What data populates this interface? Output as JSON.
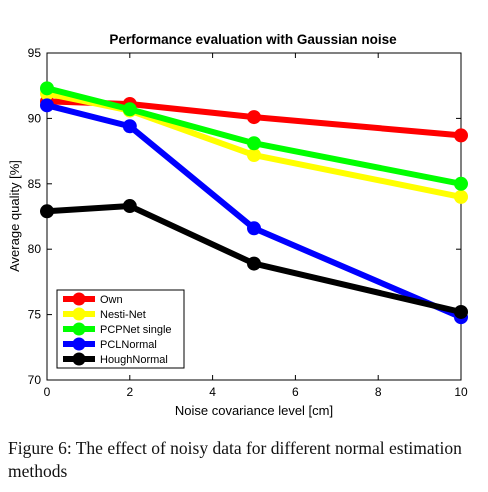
{
  "chart_data": {
    "type": "line",
    "title": "Performance evaluation with Gaussian noise",
    "xlabel": "Noise covariance level [cm]",
    "ylabel": "Average quality [%]",
    "xlim": [
      0,
      10
    ],
    "ylim": [
      70,
      95
    ],
    "xticks": [
      0,
      2,
      4,
      6,
      8,
      10
    ],
    "yticks": [
      70,
      75,
      80,
      85,
      90,
      95
    ],
    "grid": false,
    "legend_position": "bottom-left",
    "x": [
      0,
      2,
      5,
      10
    ],
    "series": [
      {
        "name": "Own",
        "color": "#ff0000",
        "values": [
          91.3,
          91.1,
          90.1,
          88.7
        ]
      },
      {
        "name": "Nesti-Net",
        "color": "#ffff00",
        "values": [
          91.9,
          90.6,
          87.2,
          84.0
        ]
      },
      {
        "name": "PCPNet single",
        "color": "#00ff00",
        "values": [
          92.3,
          90.7,
          88.1,
          85.0
        ]
      },
      {
        "name": "PCLNormal",
        "color": "#0000ff",
        "values": [
          91.0,
          89.4,
          81.6,
          74.8
        ]
      },
      {
        "name": "HoughNormal",
        "color": "#000000",
        "values": [
          82.9,
          83.3,
          78.9,
          75.2
        ]
      }
    ]
  },
  "caption": "Figure 6: The effect of noisy data for different normal estimation methods"
}
